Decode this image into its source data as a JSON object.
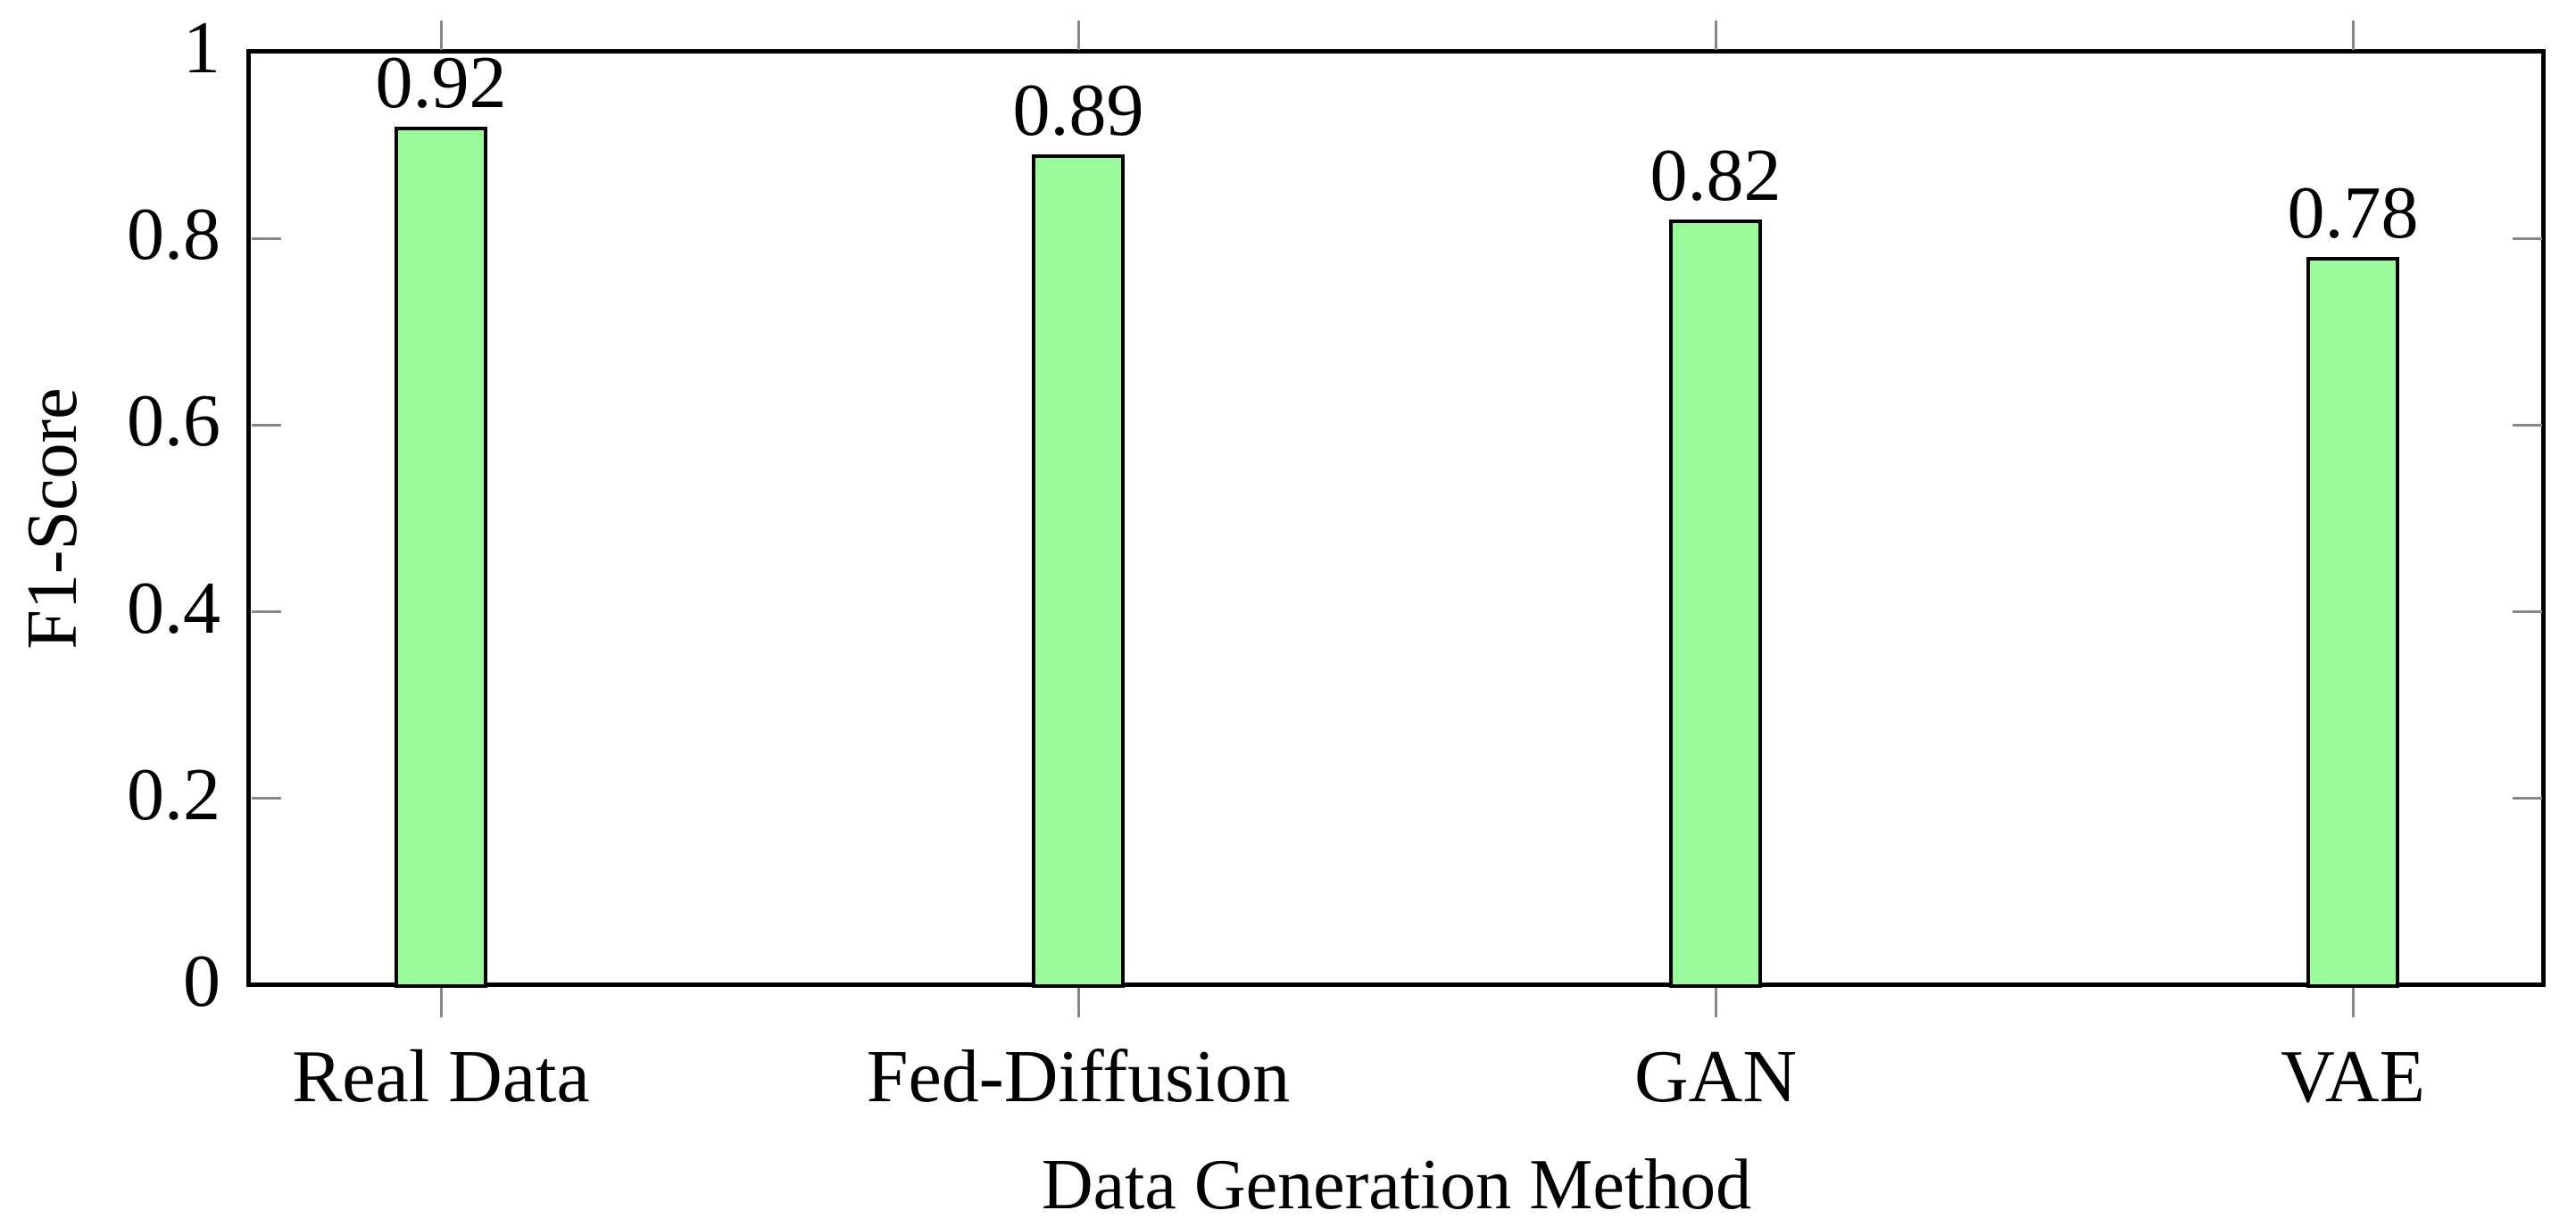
{
  "figure": {
    "background_color": "#ffffff",
    "text_color": "#000000",
    "axis_line_color": "#000000",
    "tick_mark_color": "#878787",
    "bar_fill_color": "#99fb99",
    "bar_border_color": "#000000"
  },
  "chart_data": {
    "type": "bar",
    "title": "",
    "xlabel": "Data Generation Method",
    "ylabel": "F1-Score",
    "categories": [
      "Real Data",
      "Fed-Diffusion",
      "GAN",
      "VAE"
    ],
    "values": [
      0.92,
      0.89,
      0.82,
      0.78
    ],
    "bar_value_labels": [
      "0.92",
      "0.89",
      "0.82",
      "0.78"
    ],
    "ylim": [
      0,
      1
    ],
    "yticks": [
      0,
      0.2,
      0.4,
      0.6,
      0.8,
      1
    ],
    "ytick_labels": [
      "0",
      "0.2",
      "0.4",
      "0.6",
      "0.8",
      "1"
    ],
    "grid": false,
    "legend_position": "none",
    "bar_fill": "#99fb99",
    "orientation": "vertical"
  }
}
